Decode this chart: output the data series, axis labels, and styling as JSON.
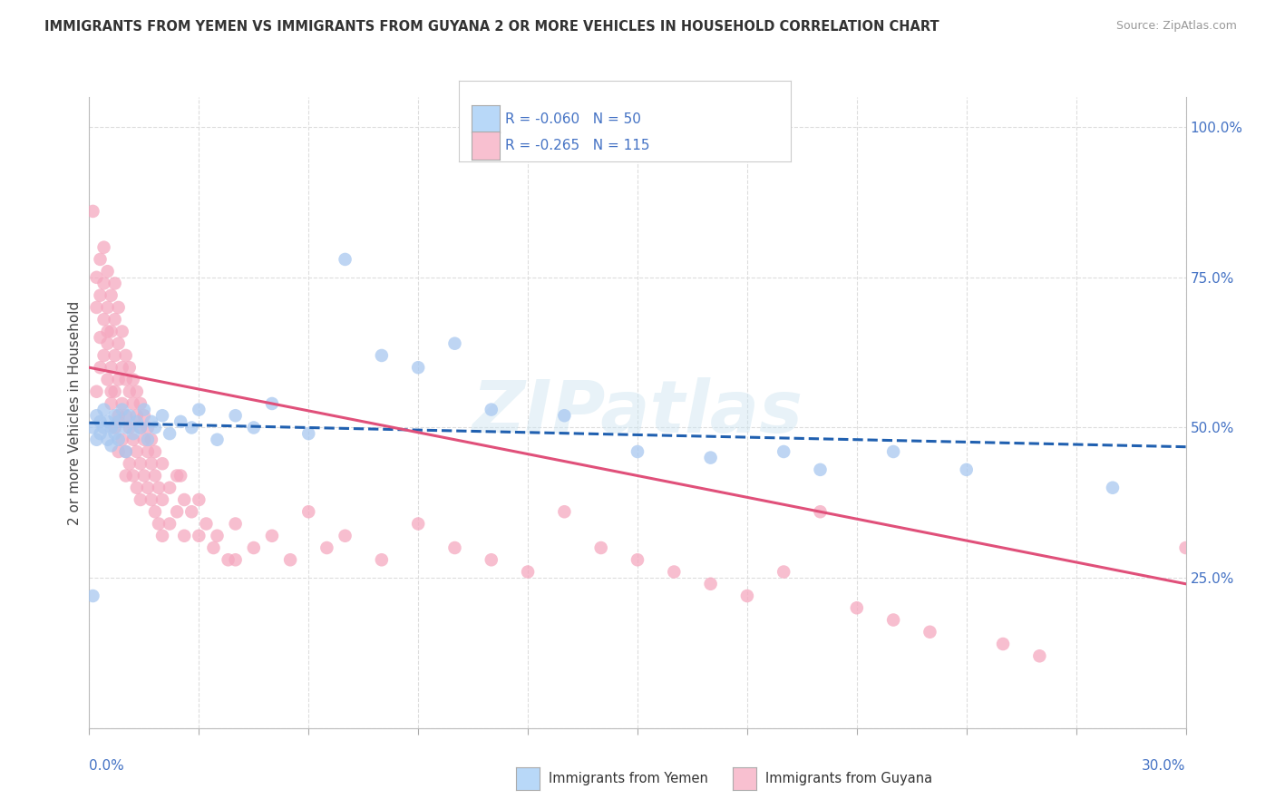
{
  "title": "IMMIGRANTS FROM YEMEN VS IMMIGRANTS FROM GUYANA 2 OR MORE VEHICLES IN HOUSEHOLD CORRELATION CHART",
  "source": "Source: ZipAtlas.com",
  "ylabel": "2 or more Vehicles in Household",
  "background_color": "#ffffff",
  "grid_color": "#dddddd",
  "yemen_scatter_color": "#a8c8f0",
  "guyana_scatter_color": "#f5a8bf",
  "yemen_line_color": "#2060b0",
  "guyana_line_color": "#e0507a",
  "legend_yemen_color": "#b8d8f8",
  "legend_guyana_color": "#f8c0d0",
  "R_yemen": "-0.060",
  "N_yemen": "50",
  "R_guyana": "-0.265",
  "N_guyana": "115",
  "watermark": "ZIPatlas",
  "xlim": [
    0.0,
    0.3
  ],
  "ylim": [
    0.0,
    1.05
  ],
  "yemen_line": [
    0.0,
    0.508,
    0.3,
    0.468
  ],
  "guyana_line": [
    0.0,
    0.6,
    0.3,
    0.24
  ],
  "yemen_points": [
    [
      0.001,
      0.5
    ],
    [
      0.002,
      0.52
    ],
    [
      0.002,
      0.48
    ],
    [
      0.003,
      0.51
    ],
    [
      0.003,
      0.49
    ],
    [
      0.004,
      0.5
    ],
    [
      0.004,
      0.53
    ],
    [
      0.005,
      0.48
    ],
    [
      0.005,
      0.51
    ],
    [
      0.006,
      0.5
    ],
    [
      0.006,
      0.47
    ],
    [
      0.007,
      0.52
    ],
    [
      0.007,
      0.49
    ],
    [
      0.008,
      0.51
    ],
    [
      0.008,
      0.48
    ],
    [
      0.009,
      0.53
    ],
    [
      0.01,
      0.5
    ],
    [
      0.01,
      0.46
    ],
    [
      0.011,
      0.52
    ],
    [
      0.012,
      0.49
    ],
    [
      0.013,
      0.51
    ],
    [
      0.014,
      0.5
    ],
    [
      0.015,
      0.53
    ],
    [
      0.016,
      0.48
    ],
    [
      0.017,
      0.51
    ],
    [
      0.018,
      0.5
    ],
    [
      0.02,
      0.52
    ],
    [
      0.022,
      0.49
    ],
    [
      0.025,
      0.51
    ],
    [
      0.028,
      0.5
    ],
    [
      0.03,
      0.53
    ],
    [
      0.035,
      0.48
    ],
    [
      0.04,
      0.52
    ],
    [
      0.045,
      0.5
    ],
    [
      0.05,
      0.54
    ],
    [
      0.06,
      0.49
    ],
    [
      0.07,
      0.78
    ],
    [
      0.08,
      0.62
    ],
    [
      0.09,
      0.6
    ],
    [
      0.1,
      0.64
    ],
    [
      0.11,
      0.53
    ],
    [
      0.13,
      0.52
    ],
    [
      0.15,
      0.46
    ],
    [
      0.17,
      0.45
    ],
    [
      0.19,
      0.46
    ],
    [
      0.2,
      0.43
    ],
    [
      0.22,
      0.46
    ],
    [
      0.24,
      0.43
    ],
    [
      0.001,
      0.22
    ],
    [
      0.28,
      0.4
    ]
  ],
  "guyana_points": [
    [
      0.001,
      0.86
    ],
    [
      0.002,
      0.75
    ],
    [
      0.002,
      0.7
    ],
    [
      0.003,
      0.78
    ],
    [
      0.003,
      0.72
    ],
    [
      0.003,
      0.65
    ],
    [
      0.004,
      0.8
    ],
    [
      0.004,
      0.74
    ],
    [
      0.004,
      0.68
    ],
    [
      0.005,
      0.76
    ],
    [
      0.005,
      0.7
    ],
    [
      0.005,
      0.64
    ],
    [
      0.005,
      0.58
    ],
    [
      0.006,
      0.72
    ],
    [
      0.006,
      0.66
    ],
    [
      0.006,
      0.6
    ],
    [
      0.006,
      0.54
    ],
    [
      0.007,
      0.68
    ],
    [
      0.007,
      0.62
    ],
    [
      0.007,
      0.56
    ],
    [
      0.007,
      0.5
    ],
    [
      0.008,
      0.64
    ],
    [
      0.008,
      0.58
    ],
    [
      0.008,
      0.52
    ],
    [
      0.008,
      0.46
    ],
    [
      0.009,
      0.6
    ],
    [
      0.009,
      0.54
    ],
    [
      0.009,
      0.48
    ],
    [
      0.01,
      0.58
    ],
    [
      0.01,
      0.52
    ],
    [
      0.01,
      0.46
    ],
    [
      0.01,
      0.42
    ],
    [
      0.011,
      0.56
    ],
    [
      0.011,
      0.5
    ],
    [
      0.011,
      0.44
    ],
    [
      0.012,
      0.54
    ],
    [
      0.012,
      0.48
    ],
    [
      0.012,
      0.42
    ],
    [
      0.013,
      0.52
    ],
    [
      0.013,
      0.46
    ],
    [
      0.013,
      0.4
    ],
    [
      0.014,
      0.5
    ],
    [
      0.014,
      0.44
    ],
    [
      0.014,
      0.38
    ],
    [
      0.015,
      0.48
    ],
    [
      0.015,
      0.42
    ],
    [
      0.016,
      0.46
    ],
    [
      0.016,
      0.4
    ],
    [
      0.017,
      0.44
    ],
    [
      0.017,
      0.38
    ],
    [
      0.018,
      0.42
    ],
    [
      0.018,
      0.36
    ],
    [
      0.019,
      0.4
    ],
    [
      0.019,
      0.34
    ],
    [
      0.02,
      0.38
    ],
    [
      0.02,
      0.32
    ],
    [
      0.022,
      0.4
    ],
    [
      0.022,
      0.34
    ],
    [
      0.024,
      0.42
    ],
    [
      0.024,
      0.36
    ],
    [
      0.026,
      0.38
    ],
    [
      0.026,
      0.32
    ],
    [
      0.028,
      0.36
    ],
    [
      0.03,
      0.38
    ],
    [
      0.03,
      0.32
    ],
    [
      0.032,
      0.34
    ],
    [
      0.034,
      0.3
    ],
    [
      0.035,
      0.32
    ],
    [
      0.038,
      0.28
    ],
    [
      0.04,
      0.34
    ],
    [
      0.04,
      0.28
    ],
    [
      0.045,
      0.3
    ],
    [
      0.05,
      0.32
    ],
    [
      0.055,
      0.28
    ],
    [
      0.06,
      0.36
    ],
    [
      0.065,
      0.3
    ],
    [
      0.07,
      0.32
    ],
    [
      0.08,
      0.28
    ],
    [
      0.09,
      0.34
    ],
    [
      0.1,
      0.3
    ],
    [
      0.11,
      0.28
    ],
    [
      0.12,
      0.26
    ],
    [
      0.13,
      0.36
    ],
    [
      0.14,
      0.3
    ],
    [
      0.15,
      0.28
    ],
    [
      0.16,
      0.26
    ],
    [
      0.17,
      0.24
    ],
    [
      0.18,
      0.22
    ],
    [
      0.19,
      0.26
    ],
    [
      0.2,
      0.36
    ],
    [
      0.21,
      0.2
    ],
    [
      0.22,
      0.18
    ],
    [
      0.23,
      0.16
    ],
    [
      0.25,
      0.14
    ],
    [
      0.26,
      0.12
    ],
    [
      0.002,
      0.56
    ],
    [
      0.003,
      0.6
    ],
    [
      0.004,
      0.62
    ],
    [
      0.005,
      0.66
    ],
    [
      0.006,
      0.56
    ],
    [
      0.007,
      0.74
    ],
    [
      0.008,
      0.7
    ],
    [
      0.009,
      0.66
    ],
    [
      0.01,
      0.62
    ],
    [
      0.011,
      0.6
    ],
    [
      0.012,
      0.58
    ],
    [
      0.013,
      0.56
    ],
    [
      0.014,
      0.54
    ],
    [
      0.015,
      0.52
    ],
    [
      0.016,
      0.5
    ],
    [
      0.017,
      0.48
    ],
    [
      0.018,
      0.46
    ],
    [
      0.02,
      0.44
    ],
    [
      0.025,
      0.42
    ],
    [
      0.3,
      0.3
    ]
  ]
}
